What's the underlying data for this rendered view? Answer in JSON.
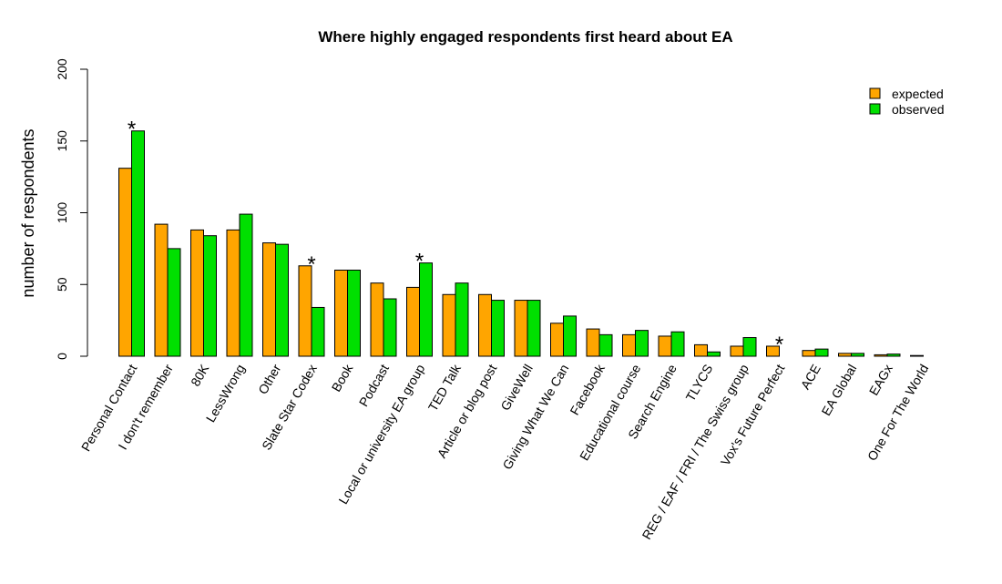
{
  "chart_data": {
    "type": "bar",
    "title": "Where highly engaged respondents first heard about EA",
    "xlabel": "",
    "ylabel": "number of respondents",
    "ylim": [
      0,
      200
    ],
    "yticks": [
      0,
      50,
      100,
      150,
      200
    ],
    "grid": false,
    "legend_position": "top-right",
    "categories": [
      "Personal Contact",
      "I don't remember",
      "80K",
      "LessWrong",
      "Other",
      "Slate Star Codex",
      "Book",
      "Podcast",
      "Local or university EA group",
      "TED Talk",
      "Article or blog post",
      "GiveWell",
      "Giving What We Can",
      "Facebook",
      "Educational course",
      "Search Engine",
      "TLYCS",
      "REG / EAF / FRI / The Swiss group",
      "Vox's Future Perfect",
      "ACE",
      "EA Global",
      "EAGx",
      "One For The World"
    ],
    "series": [
      {
        "name": "expected",
        "color": "#FFA500",
        "values": [
          131,
          92,
          88,
          88,
          79,
          63,
          60,
          51,
          48,
          43,
          43,
          39,
          23,
          19,
          15,
          14,
          8,
          7,
          7,
          4,
          2,
          1,
          0.5
        ]
      },
      {
        "name": "observed",
        "color": "#00E000",
        "values": [
          157,
          75,
          84,
          99,
          78,
          34,
          60,
          40,
          65,
          51,
          39,
          39,
          28,
          15,
          18,
          17,
          3,
          13,
          0,
          5,
          2,
          1.5,
          0
        ]
      }
    ],
    "annotations": [
      {
        "text": "*",
        "category": "Personal Contact"
      },
      {
        "text": "*",
        "category": "Slate Star Codex"
      },
      {
        "text": "*",
        "category": "Local or university EA group"
      },
      {
        "text": "*",
        "category": "Vox's Future Perfect"
      }
    ]
  }
}
